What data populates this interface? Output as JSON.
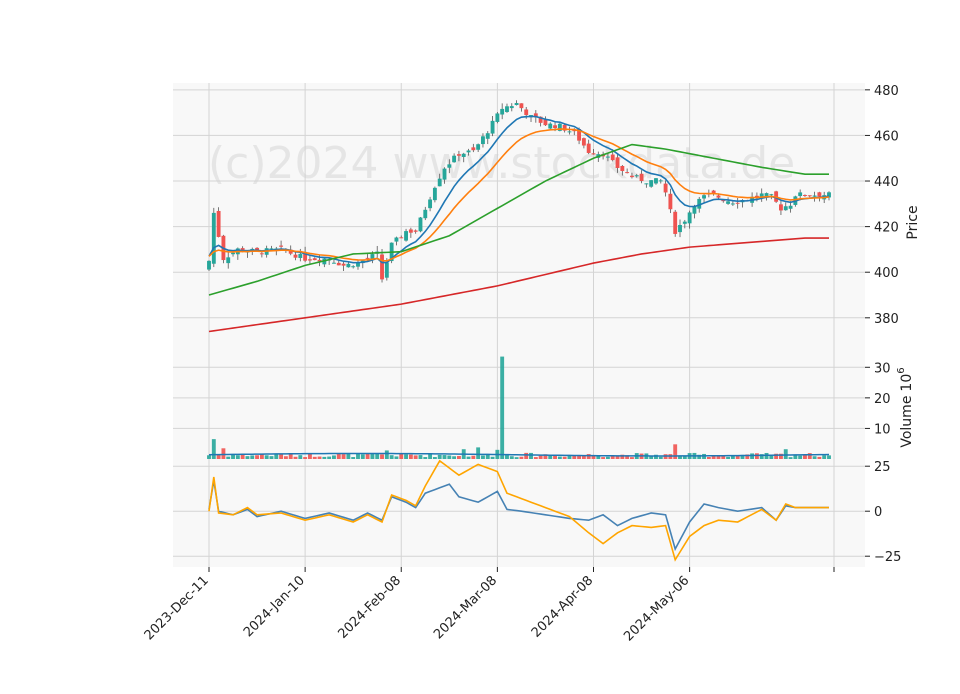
{
  "chart_data": {
    "type": "candlestick",
    "title": "",
    "watermark": "(c)2024 www.stockdata.de",
    "dates": [
      "2023-Dec-11",
      "2023-Dec-12",
      "2023-Dec-13",
      "2023-Dec-14",
      "2023-Dec-15",
      "2023-Dec-18",
      "2023-Dec-19",
      "2023-Dec-20",
      "2023-Dec-21",
      "2023-Dec-22",
      "2023-Dec-26",
      "2023-Dec-27",
      "2023-Dec-28",
      "2023-Dec-29",
      "2024-Jan-02",
      "2024-Jan-03",
      "2024-Jan-04",
      "2024-Jan-05",
      "2024-Jan-08",
      "2024-Jan-09",
      "2024-Jan-10",
      "2024-Jan-11",
      "2024-Jan-12",
      "2024-Jan-16",
      "2024-Jan-17",
      "2024-Jan-18",
      "2024-Jan-19",
      "2024-Jan-22",
      "2024-Jan-23",
      "2024-Jan-24",
      "2024-Jan-25",
      "2024-Jan-26",
      "2024-Jan-29",
      "2024-Jan-30",
      "2024-Jan-31",
      "2024-Feb-01",
      "2024-Feb-02",
      "2024-Feb-05",
      "2024-Feb-06",
      "2024-Feb-07",
      "2024-Feb-08",
      "2024-Feb-09",
      "2024-Feb-12",
      "2024-Feb-13",
      "2024-Feb-14",
      "2024-Feb-15",
      "2024-Feb-16",
      "2024-Feb-20",
      "2024-Feb-21",
      "2024-Feb-22",
      "2024-Feb-23",
      "2024-Feb-26",
      "2024-Feb-27",
      "2024-Feb-28",
      "2024-Feb-29",
      "2024-Mar-01",
      "2024-Mar-04",
      "2024-Mar-05",
      "2024-Mar-06",
      "2024-Mar-07",
      "2024-Mar-08",
      "2024-Mar-11",
      "2024-Mar-12",
      "2024-Mar-13",
      "2024-Mar-14",
      "2024-Mar-15",
      "2024-Mar-18",
      "2024-Mar-19",
      "2024-Mar-20",
      "2024-Mar-21",
      "2024-Mar-22",
      "2024-Mar-25",
      "2024-Mar-26",
      "2024-Mar-27",
      "2024-Mar-28",
      "2024-Apr-01",
      "2024-Apr-02",
      "2024-Apr-03",
      "2024-Apr-04",
      "2024-Apr-05",
      "2024-Apr-08",
      "2024-Apr-09",
      "2024-Apr-10",
      "2024-Apr-11",
      "2024-Apr-12",
      "2024-Apr-15",
      "2024-Apr-16",
      "2024-Apr-17",
      "2024-Apr-18",
      "2024-Apr-19",
      "2024-Apr-22",
      "2024-Apr-23",
      "2024-Apr-24",
      "2024-Apr-25",
      "2024-Apr-26",
      "2024-Apr-29",
      "2024-Apr-30",
      "2024-May-01",
      "2024-May-02",
      "2024-May-03",
      "2024-May-06",
      "2024-May-07",
      "2024-May-08",
      "2024-May-09",
      "2024-May-10",
      "2024-May-13",
      "2024-May-14",
      "2024-May-15",
      "2024-May-16",
      "2024-May-17",
      "2024-May-20",
      "2024-May-21",
      "2024-May-22",
      "2024-May-23",
      "2024-May-24",
      "2024-May-28",
      "2024-May-29",
      "2024-May-30",
      "2024-May-31",
      "2024-Jun-03",
      "2024-Jun-04",
      "2024-Jun-05",
      "2024-Jun-06",
      "2024-Jun-07",
      "2024-Jun-10",
      "2024-Jun-11",
      "2024-Jun-12",
      "2024-Jun-13",
      "2024-Jun-14",
      "2024-Jun-17"
    ],
    "xticks": [
      "2023-Dec-11",
      "2024-Jan-10",
      "2024-Feb-08",
      "2024-Mar-08",
      "2024-Apr-08",
      "2024-May-06"
    ],
    "xtick_index": [
      0,
      20,
      40,
      60,
      80,
      100
    ],
    "x_slots": 125,
    "candles": [],
    "price_axis": {
      "label": "Price",
      "range": [
        365,
        483
      ],
      "ticks": [
        380,
        400,
        420,
        440,
        460,
        480
      ]
    },
    "volume_axis": {
      "label": "Volume",
      "exponent": "6",
      "range": [
        0,
        35
      ],
      "ticks": [
        10,
        20,
        30
      ]
    },
    "oscillator_axis": {
      "range": [
        -31,
        29
      ],
      "ticks": [
        -25,
        0,
        25
      ]
    },
    "price_overlays": [
      {
        "color": "#1f77b4",
        "values": []
      },
      {
        "color": "#ff7f0e",
        "values": []
      },
      {
        "color": "#2ca02c",
        "values": []
      },
      {
        "color": "#d62728",
        "values": []
      }
    ],
    "volume_overlay": {
      "color": "#1f77b4",
      "values": []
    },
    "oscillator_series": [
      {
        "color": "#4682b4",
        "values": []
      },
      {
        "color": "#ffa500",
        "values": []
      }
    ],
    "colors": {
      "up": "#26a69a",
      "down": "#ef5350",
      "panel_bg": "#f8f8f8",
      "grid": "#d4d4d4"
    }
  }
}
